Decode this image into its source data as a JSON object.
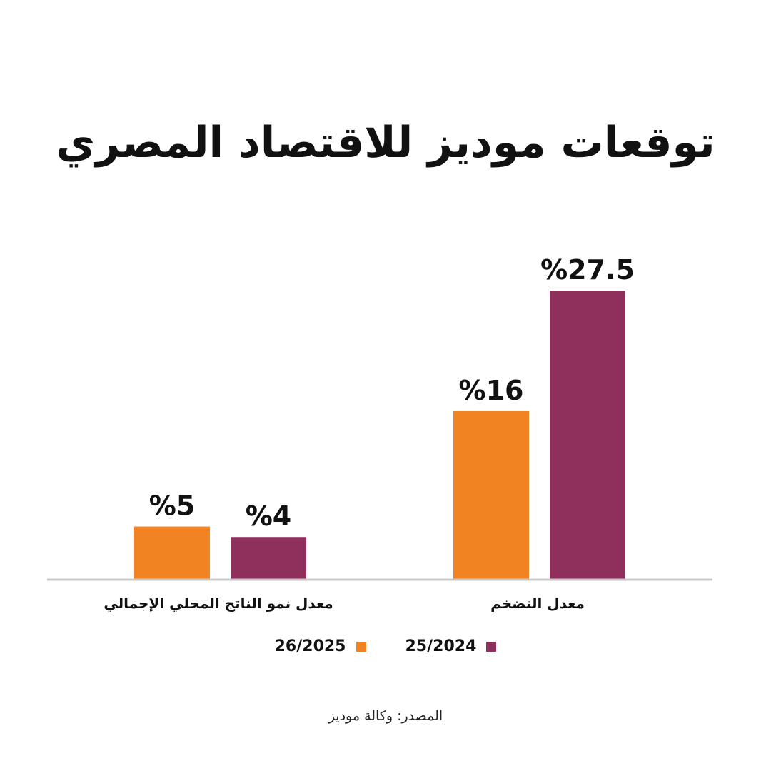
{
  "title": "توقعات موديز للاقتصاد المصري",
  "source": "المصدر: وكالة موديز",
  "colors": {
    "orange": "#f28322",
    "purple": "#8e2f5c",
    "axis": "#c8c8c8"
  },
  "legend": [
    {
      "label": "25/2024",
      "color": "#8e2f5c"
    },
    {
      "label": "26/2025",
      "color": "#f28322"
    }
  ],
  "chart_data": {
    "type": "bar",
    "title": "توقعات موديز للاقتصاد المصري",
    "categories": [
      "معدل التضخم",
      "معدل نمو الناتج المحلي الإجمالي"
    ],
    "series": [
      {
        "name": "25/2024",
        "color": "#8e2f5c",
        "values": [
          27.5,
          4
        ],
        "labels": [
          "%27.5",
          "%4"
        ]
      },
      {
        "name": "26/2025",
        "color": "#f28322",
        "values": [
          16,
          5
        ],
        "labels": [
          "%16",
          "%5"
        ]
      }
    ],
    "ylim": [
      0,
      27.5
    ],
    "grid": false,
    "legend_position": "bottom",
    "direction": "rtl"
  }
}
